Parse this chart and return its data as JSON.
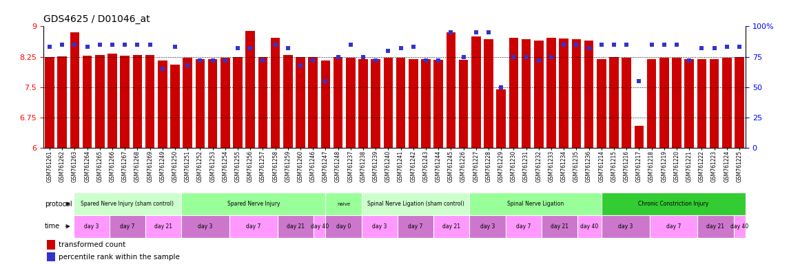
{
  "title": "GDS4625 / D01046_at",
  "samples": [
    "GSM761261",
    "GSM761262",
    "GSM761263",
    "GSM761264",
    "GSM761265",
    "GSM761266",
    "GSM761267",
    "GSM761268",
    "GSM761269",
    "GSM761249",
    "GSM761250",
    "GSM761251",
    "GSM761252",
    "GSM761253",
    "GSM761254",
    "GSM761255",
    "GSM761256",
    "GSM761257",
    "GSM761258",
    "GSM761259",
    "GSM761260",
    "GSM761246",
    "GSM761247",
    "GSM761248",
    "GSM761237",
    "GSM761238",
    "GSM761239",
    "GSM761240",
    "GSM761241",
    "GSM761242",
    "GSM761243",
    "GSM761244",
    "GSM761245",
    "GSM761226",
    "GSM761227",
    "GSM761228",
    "GSM761229",
    "GSM761230",
    "GSM761231",
    "GSM761232",
    "GSM761233",
    "GSM761234",
    "GSM761235",
    "GSM761236",
    "GSM761214",
    "GSM761215",
    "GSM761216",
    "GSM761217",
    "GSM761218",
    "GSM761219",
    "GSM761220",
    "GSM761221",
    "GSM761222",
    "GSM761223",
    "GSM761224",
    "GSM761225"
  ],
  "bar_values": [
    8.25,
    8.26,
    8.85,
    8.28,
    8.3,
    8.32,
    8.28,
    8.3,
    8.3,
    8.15,
    8.05,
    8.22,
    8.2,
    8.19,
    8.22,
    8.25,
    8.88,
    8.24,
    8.72,
    8.3,
    8.25,
    8.25,
    8.15,
    8.25,
    8.22,
    8.2,
    8.19,
    8.22,
    8.22,
    8.2,
    8.19,
    8.18,
    8.85,
    8.18,
    8.75,
    8.68,
    7.45,
    8.72,
    8.68,
    8.65,
    8.72,
    8.7,
    8.68,
    8.65,
    8.19,
    8.25,
    8.22,
    6.55,
    8.2,
    8.22,
    8.23,
    8.2,
    8.2,
    8.19,
    8.22,
    8.25
  ],
  "percentile_values": [
    83,
    85,
    85,
    83,
    85,
    85,
    85,
    85,
    85,
    65,
    83,
    68,
    72,
    72,
    72,
    82,
    82,
    72,
    85,
    82,
    68,
    72,
    55,
    75,
    85,
    75,
    72,
    80,
    82,
    83,
    72,
    72,
    95,
    75,
    95,
    95,
    50,
    75,
    75,
    72,
    75,
    85,
    85,
    82,
    85,
    85,
    85,
    55,
    85,
    85,
    85,
    72,
    82,
    82,
    83,
    83
  ],
  "ylim_left": [
    6,
    9
  ],
  "ylim_right": [
    0,
    100
  ],
  "yticks_left": [
    6,
    6.75,
    7.5,
    8.25,
    9
  ],
  "yticks_right": [
    0,
    25,
    50,
    75,
    100
  ],
  "ytick_labels_right": [
    "0",
    "25",
    "50",
    "75",
    "100%"
  ],
  "bar_color": "#CC0000",
  "dot_color": "#3333CC",
  "background_color": "#ffffff",
  "dotted_line_y": [
    6.75,
    7.5,
    8.25
  ],
  "protocols": [
    {
      "label": "Spared Nerve Injury (sham control)",
      "color": "#ccffcc",
      "start": 0,
      "end": 9
    },
    {
      "label": "Spared Nerve Injury",
      "color": "#99ff99",
      "start": 9,
      "end": 21
    },
    {
      "label": "naive",
      "color": "#99ff99",
      "start": 21,
      "end": 24
    },
    {
      "label": "Spinal Nerve Ligation (sham control)",
      "color": "#ccffcc",
      "start": 24,
      "end": 33
    },
    {
      "label": "Spinal Nerve Ligation",
      "color": "#99ff99",
      "start": 33,
      "end": 44
    },
    {
      "label": "Chronic Constriction Injury",
      "color": "#33cc33",
      "start": 44,
      "end": 56
    }
  ],
  "times": [
    {
      "label": "day 3",
      "start": 0,
      "end": 3
    },
    {
      "label": "day 7",
      "start": 3,
      "end": 6
    },
    {
      "label": "day 21",
      "start": 6,
      "end": 9
    },
    {
      "label": "day 3",
      "start": 9,
      "end": 13
    },
    {
      "label": "day 7",
      "start": 13,
      "end": 17
    },
    {
      "label": "day 21",
      "start": 17,
      "end": 20
    },
    {
      "label": "day 40",
      "start": 20,
      "end": 21
    },
    {
      "label": "day 0",
      "start": 21,
      "end": 24
    },
    {
      "label": "day 3",
      "start": 24,
      "end": 27
    },
    {
      "label": "day 7",
      "start": 27,
      "end": 30
    },
    {
      "label": "day 21",
      "start": 30,
      "end": 33
    },
    {
      "label": "day 3",
      "start": 33,
      "end": 36
    },
    {
      "label": "day 7",
      "start": 36,
      "end": 39
    },
    {
      "label": "day 21",
      "start": 39,
      "end": 42
    },
    {
      "label": "day 40",
      "start": 42,
      "end": 44
    },
    {
      "label": "day 3",
      "start": 44,
      "end": 48
    },
    {
      "label": "day 7",
      "start": 48,
      "end": 52
    },
    {
      "label": "day 21",
      "start": 52,
      "end": 55
    },
    {
      "label": "day 40",
      "start": 55,
      "end": 56
    }
  ]
}
